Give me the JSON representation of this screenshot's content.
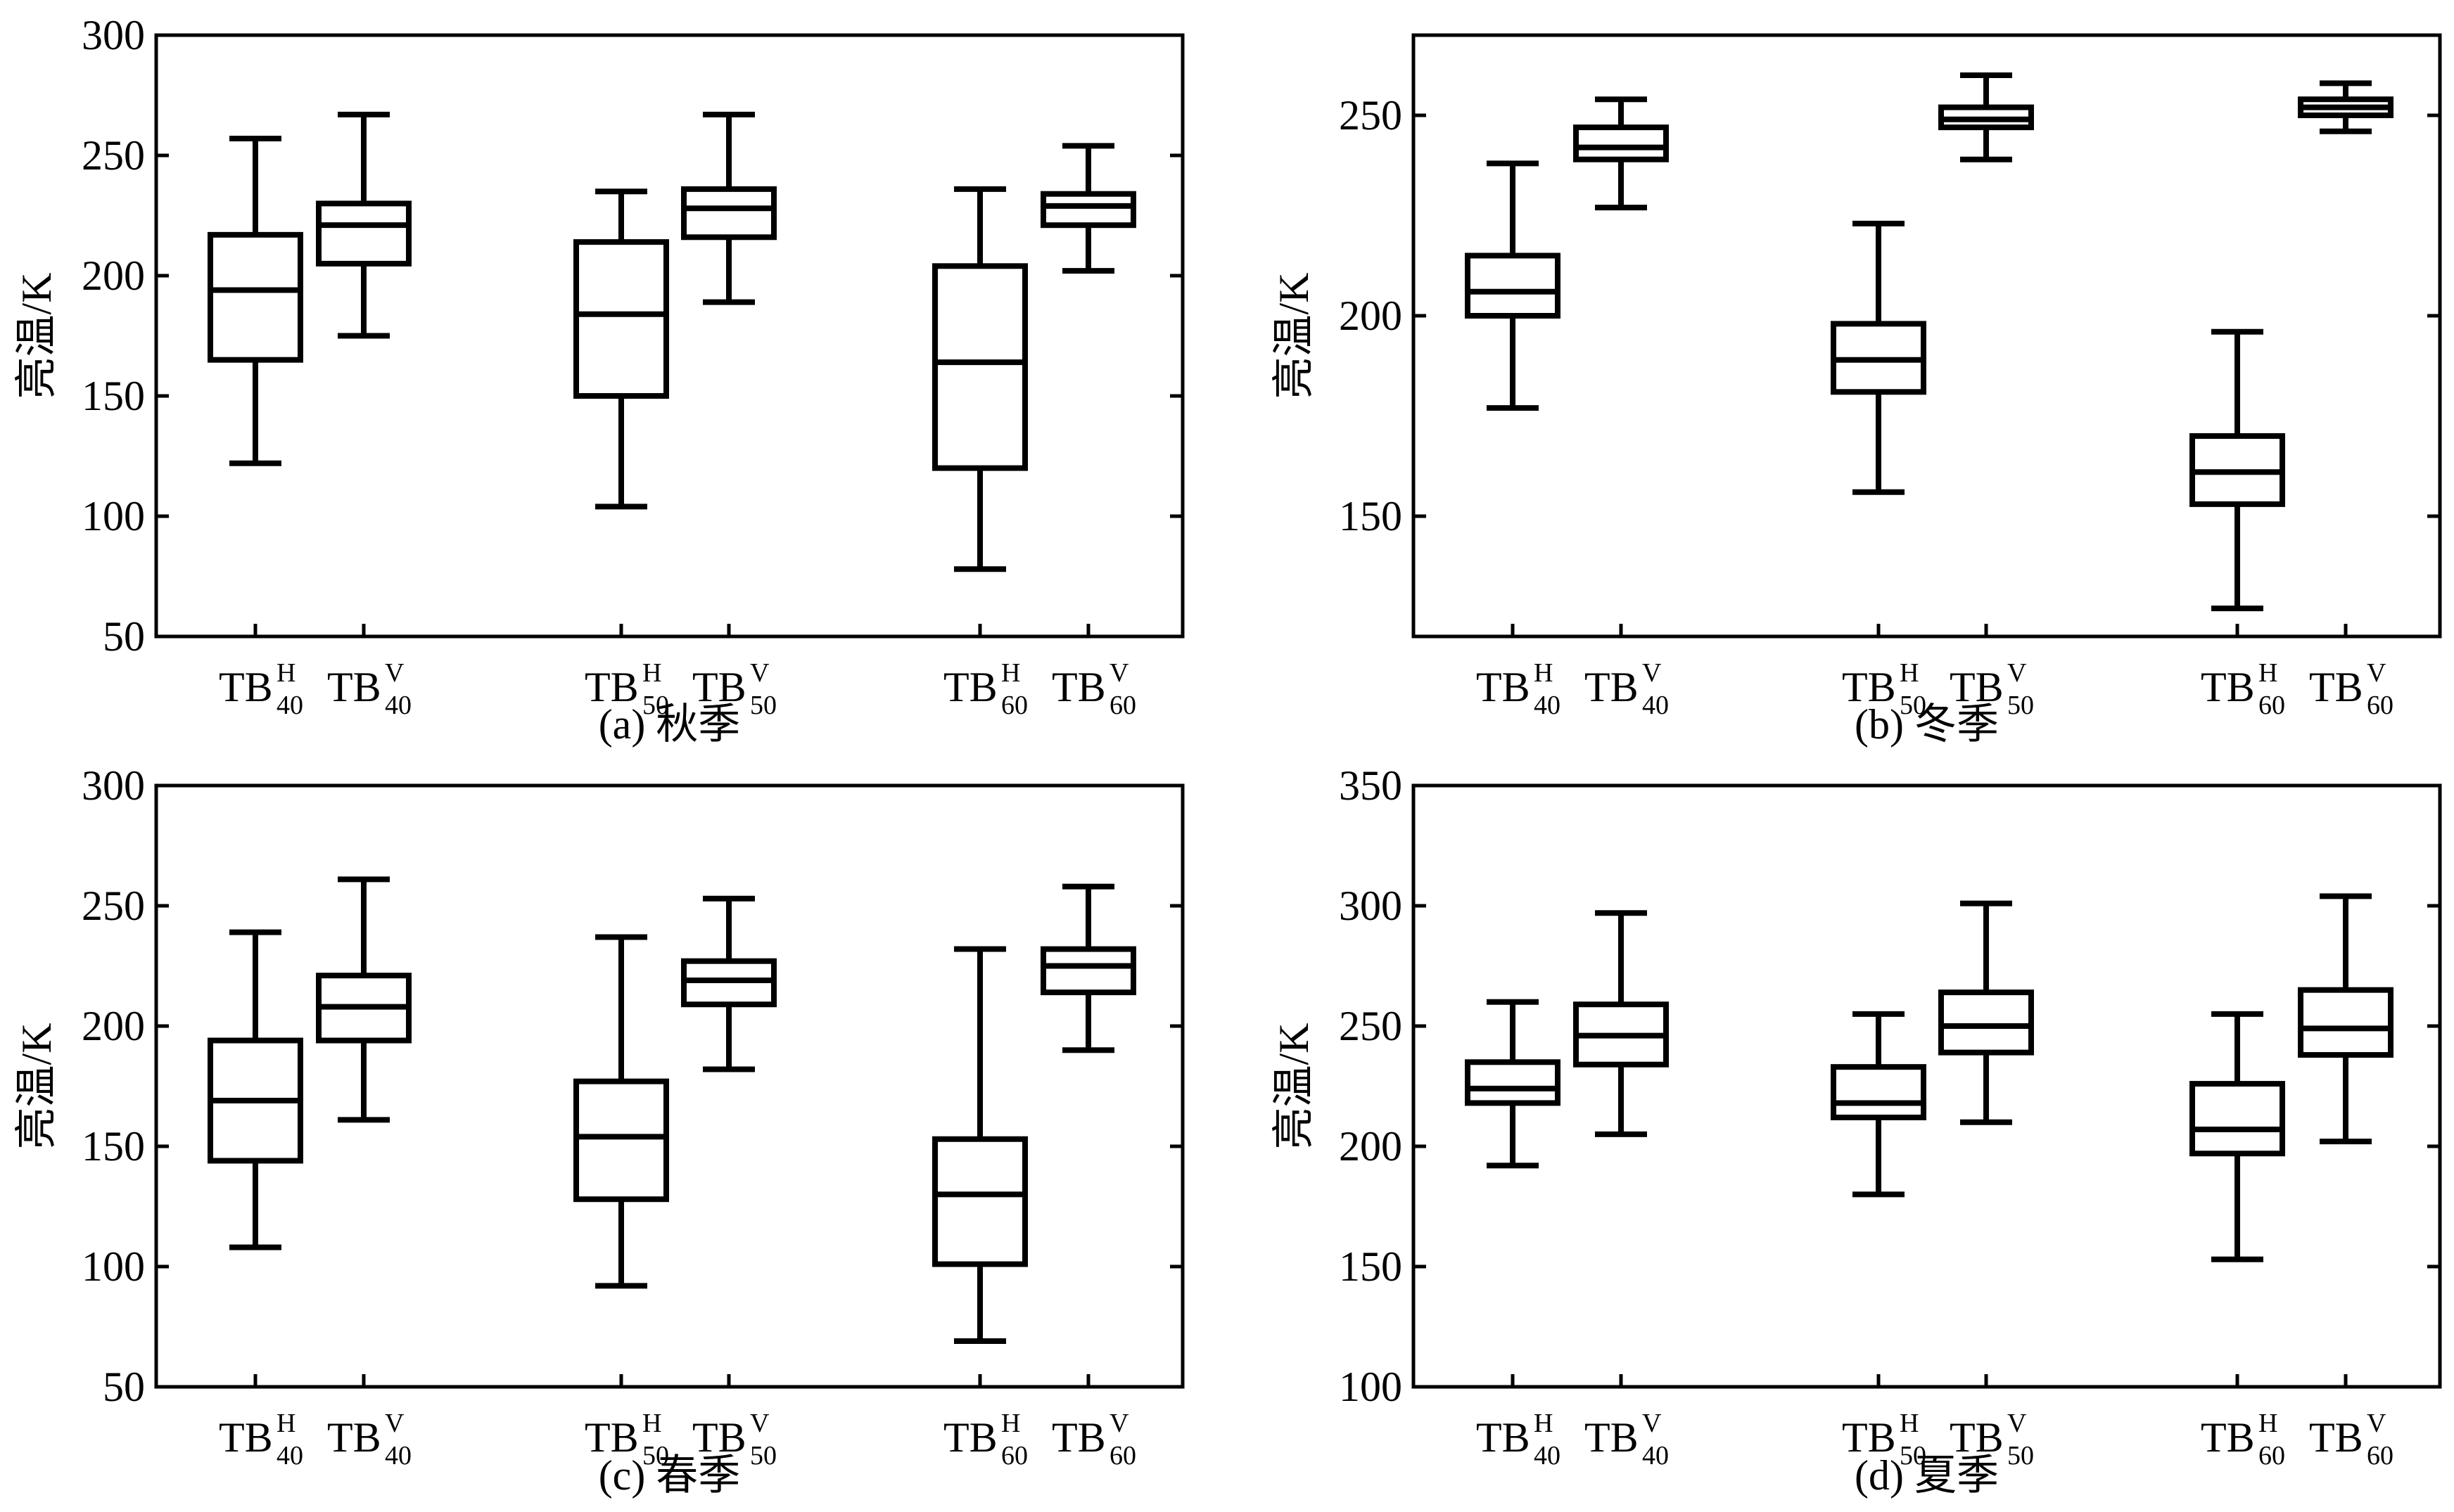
{
  "chart_data": [
    {
      "type": "box",
      "caption": "(a) 秋季",
      "ylabel": "亮温/K",
      "ylim": [
        50,
        300
      ],
      "yticks": [
        50,
        100,
        150,
        200,
        250,
        300
      ],
      "categories": [
        {
          "main": "TB",
          "sup": "H",
          "sub": "40"
        },
        {
          "main": "TB",
          "sup": "V",
          "sub": "40"
        },
        {
          "main": "TB",
          "sup": "H",
          "sub": "50"
        },
        {
          "main": "TB",
          "sup": "V",
          "sub": "50"
        },
        {
          "main": "TB",
          "sup": "H",
          "sub": "60"
        },
        {
          "main": "TB",
          "sup": "V",
          "sub": "60"
        }
      ],
      "boxes": [
        {
          "min": 122,
          "q1": 165,
          "median": 194,
          "q3": 217,
          "max": 257
        },
        {
          "min": 175,
          "q1": 205,
          "median": 221,
          "q3": 230,
          "max": 267
        },
        {
          "min": 104,
          "q1": 150,
          "median": 184,
          "q3": 214,
          "max": 235
        },
        {
          "min": 189,
          "q1": 216,
          "median": 228,
          "q3": 236,
          "max": 267
        },
        {
          "min": 78,
          "q1": 120,
          "median": 164,
          "q3": 204,
          "max": 236
        },
        {
          "min": 202,
          "q1": 221,
          "median": 229,
          "q3": 234,
          "max": 254
        }
      ]
    },
    {
      "type": "box",
      "caption": "(b) 冬季",
      "ylabel": "亮温/K",
      "ylim": [
        120,
        270
      ],
      "yticks": [
        150,
        200,
        250
      ],
      "categories": [
        {
          "main": "TB",
          "sup": "H",
          "sub": "40"
        },
        {
          "main": "TB",
          "sup": "V",
          "sub": "40"
        },
        {
          "main": "TB",
          "sup": "H",
          "sub": "50"
        },
        {
          "main": "TB",
          "sup": "V",
          "sub": "50"
        },
        {
          "main": "TB",
          "sup": "H",
          "sub": "60"
        },
        {
          "main": "TB",
          "sup": "V",
          "sub": "60"
        }
      ],
      "boxes": [
        {
          "min": 177,
          "q1": 200,
          "median": 206,
          "q3": 215,
          "max": 238
        },
        {
          "min": 227,
          "q1": 239,
          "median": 242,
          "q3": 247,
          "max": 254
        },
        {
          "min": 156,
          "q1": 181,
          "median": 189,
          "q3": 198,
          "max": 223
        },
        {
          "min": 239,
          "q1": 247,
          "median": 249,
          "q3": 252,
          "max": 260
        },
        {
          "min": 127,
          "q1": 153,
          "median": 161,
          "q3": 170,
          "max": 196
        },
        {
          "min": 246,
          "q1": 250,
          "median": 252,
          "q3": 254,
          "max": 258
        }
      ]
    },
    {
      "type": "box",
      "caption": "(c) 春季",
      "ylabel": "亮温/K",
      "ylim": [
        50,
        300
      ],
      "yticks": [
        50,
        100,
        150,
        200,
        250,
        300
      ],
      "categories": [
        {
          "main": "TB",
          "sup": "H",
          "sub": "40"
        },
        {
          "main": "TB",
          "sup": "V",
          "sub": "40"
        },
        {
          "main": "TB",
          "sup": "H",
          "sub": "50"
        },
        {
          "main": "TB",
          "sup": "V",
          "sub": "50"
        },
        {
          "main": "TB",
          "sup": "H",
          "sub": "60"
        },
        {
          "main": "TB",
          "sup": "V",
          "sub": "60"
        }
      ],
      "boxes": [
        {
          "min": 108,
          "q1": 144,
          "median": 169,
          "q3": 194,
          "max": 239
        },
        {
          "min": 161,
          "q1": 194,
          "median": 208,
          "q3": 221,
          "max": 261
        },
        {
          "min": 92,
          "q1": 128,
          "median": 154,
          "q3": 177,
          "max": 237
        },
        {
          "min": 182,
          "q1": 209,
          "median": 219,
          "q3": 227,
          "max": 253
        },
        {
          "min": 69,
          "q1": 101,
          "median": 130,
          "q3": 153,
          "max": 232
        },
        {
          "min": 190,
          "q1": 214,
          "median": 225,
          "q3": 232,
          "max": 258
        }
      ]
    },
    {
      "type": "box",
      "caption": "(d) 夏季",
      "ylabel": "亮温/K",
      "ylim": [
        100,
        350
      ],
      "yticks": [
        100,
        150,
        200,
        250,
        300,
        350
      ],
      "categories": [
        {
          "main": "TB",
          "sup": "H",
          "sub": "40"
        },
        {
          "main": "TB",
          "sup": "V",
          "sub": "40"
        },
        {
          "main": "TB",
          "sup": "H",
          "sub": "50"
        },
        {
          "main": "TB",
          "sup": "V",
          "sub": "50"
        },
        {
          "main": "TB",
          "sup": "H",
          "sub": "60"
        },
        {
          "main": "TB",
          "sup": "V",
          "sub": "60"
        }
      ],
      "boxes": [
        {
          "min": 192,
          "q1": 218,
          "median": 224,
          "q3": 235,
          "max": 260
        },
        {
          "min": 205,
          "q1": 234,
          "median": 246,
          "q3": 259,
          "max": 297
        },
        {
          "min": 180,
          "q1": 212,
          "median": 218,
          "q3": 233,
          "max": 255
        },
        {
          "min": 210,
          "q1": 239,
          "median": 250,
          "q3": 264,
          "max": 301
        },
        {
          "min": 153,
          "q1": 197,
          "median": 207,
          "q3": 226,
          "max": 255
        },
        {
          "min": 202,
          "q1": 238,
          "median": 249,
          "q3": 265,
          "max": 304
        }
      ]
    }
  ]
}
